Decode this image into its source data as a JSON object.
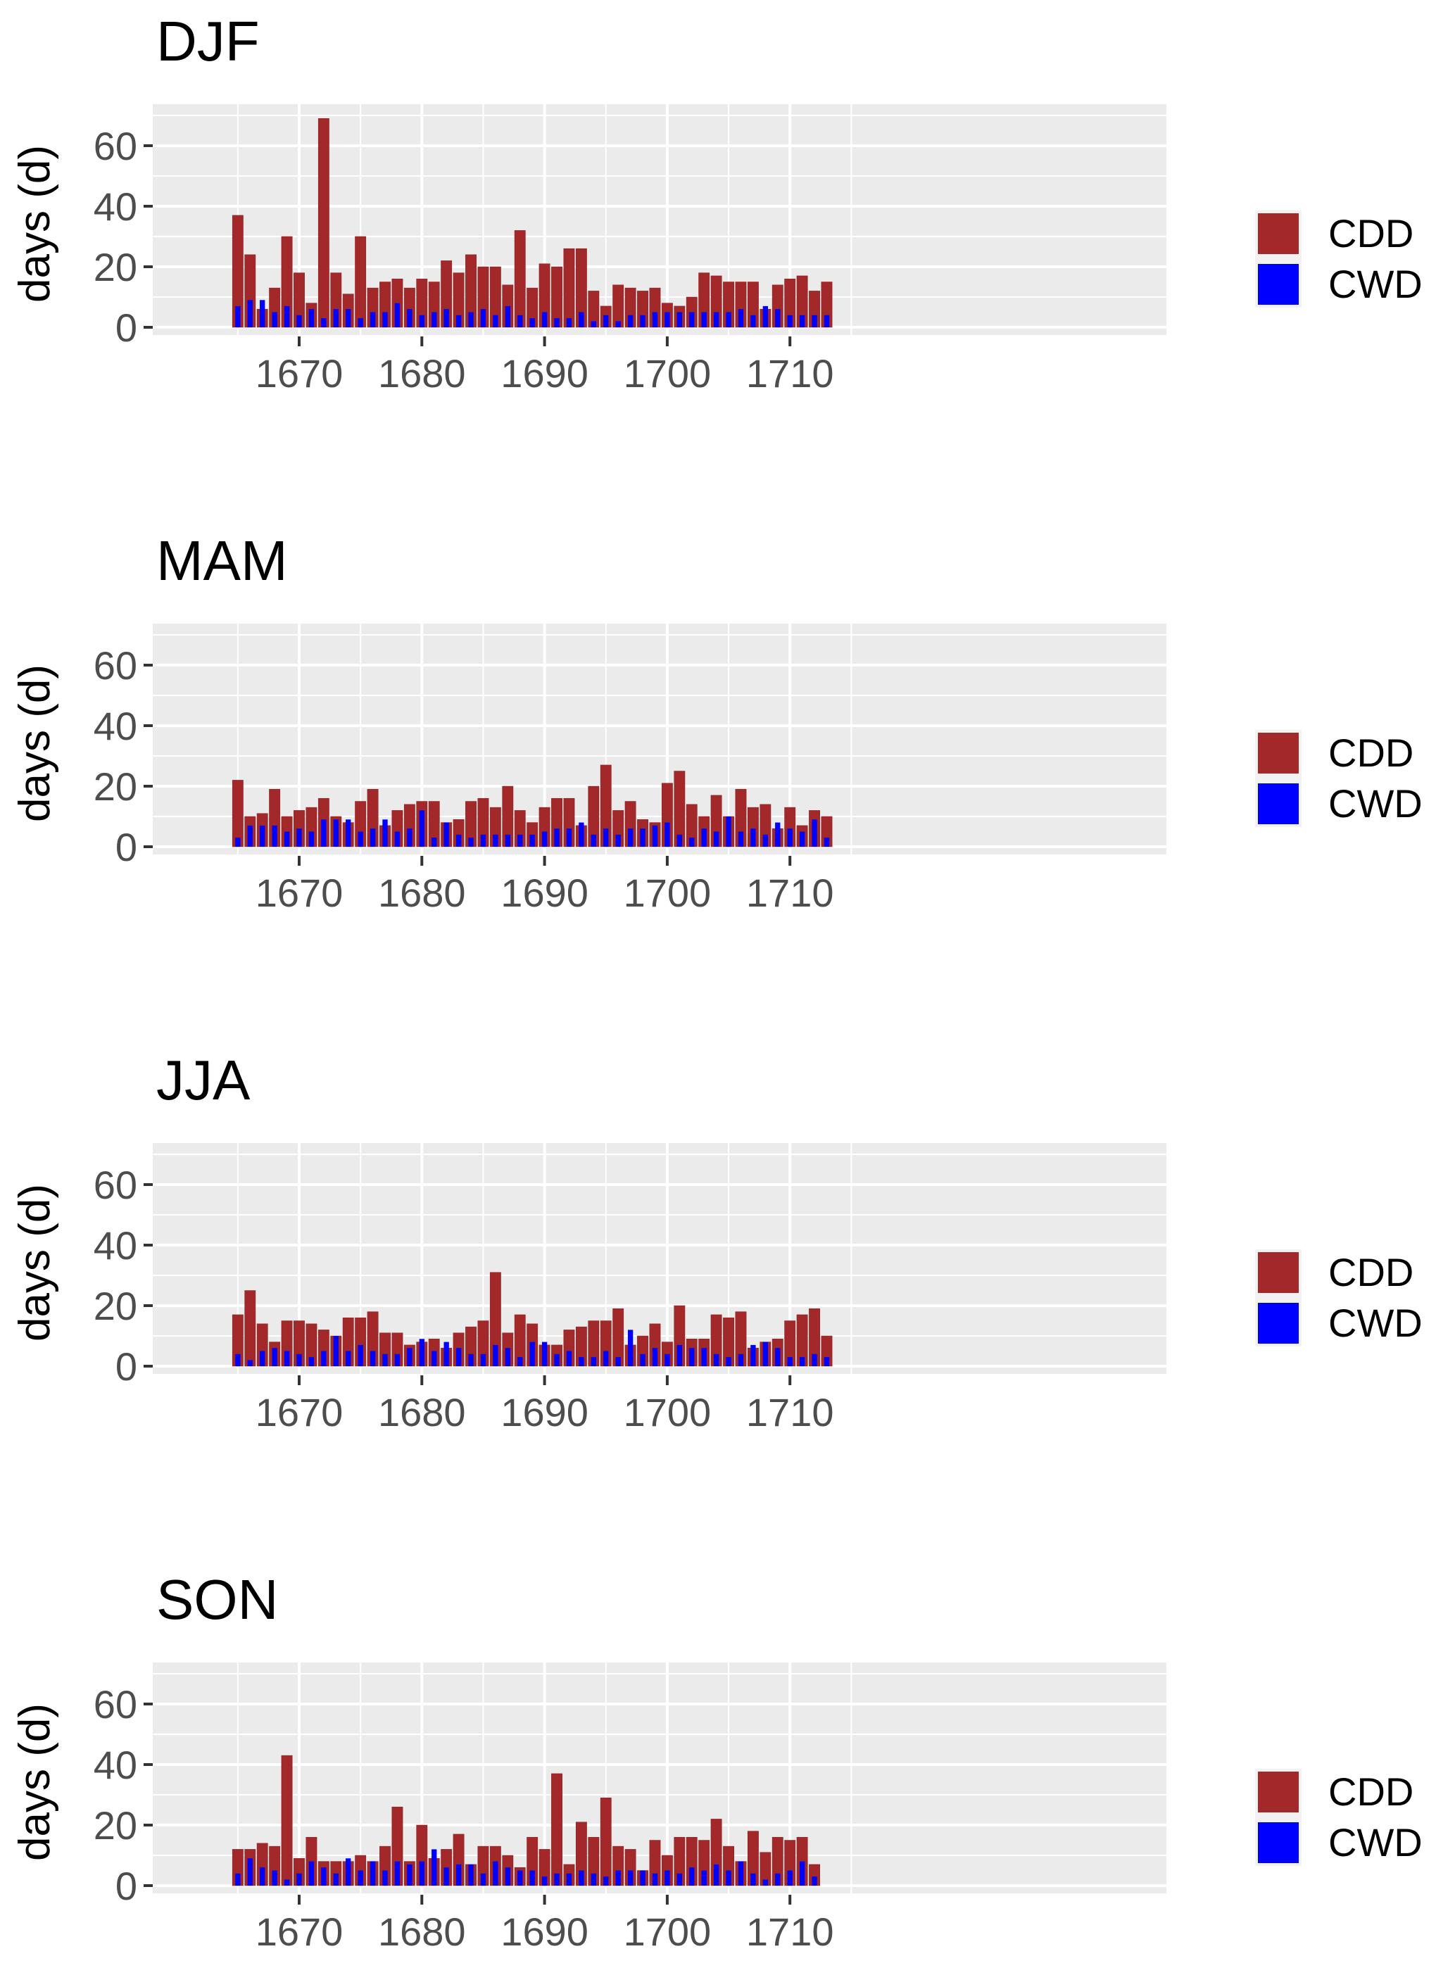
{
  "chart_data": [
    {
      "type": "bar",
      "title": "DJF",
      "xlabel": "",
      "ylabel": "days (d)",
      "ylim": [
        0,
        70
      ],
      "xlim": [
        1662,
        1716
      ],
      "yticks": [
        0,
        20,
        40,
        60
      ],
      "xticks": [
        1670,
        1680,
        1690,
        1700,
        1710
      ],
      "grid": true,
      "legend": "right",
      "x": [
        1665,
        1666,
        1667,
        1668,
        1669,
        1670,
        1671,
        1672,
        1673,
        1674,
        1675,
        1676,
        1677,
        1678,
        1679,
        1680,
        1681,
        1682,
        1683,
        1684,
        1685,
        1686,
        1687,
        1688,
        1689,
        1690,
        1691,
        1692,
        1693,
        1694,
        1695,
        1696,
        1697,
        1698,
        1699,
        1700,
        1701,
        1702,
        1703,
        1704,
        1705,
        1706,
        1707,
        1708,
        1709,
        1710,
        1711,
        1712,
        1713
      ],
      "series": [
        {
          "name": "CDD",
          "color": "#a2282a",
          "values": [
            37,
            24,
            6,
            13,
            30,
            18,
            8,
            69,
            18,
            11,
            30,
            13,
            15,
            16,
            13,
            16,
            15,
            22,
            18,
            24,
            20,
            20,
            14,
            32,
            13,
            21,
            20,
            26,
            26,
            12,
            7,
            14,
            13,
            12,
            13,
            8,
            7,
            10,
            18,
            17,
            15,
            15,
            15,
            6,
            14,
            16,
            17,
            12,
            15
          ]
        },
        {
          "name": "CWD",
          "color": "#0000ff",
          "values": [
            7,
            9,
            9,
            5,
            7,
            4,
            6,
            3,
            6,
            6,
            3,
            5,
            5,
            8,
            6,
            4,
            5,
            6,
            4,
            5,
            6,
            4,
            7,
            4,
            3,
            5,
            3,
            3,
            5,
            2,
            4,
            2,
            4,
            4,
            5,
            5,
            5,
            5,
            5,
            5,
            5,
            6,
            4,
            7,
            6,
            4,
            4,
            4,
            4
          ]
        }
      ]
    },
    {
      "type": "bar",
      "title": "MAM",
      "xlabel": "",
      "ylabel": "days (d)",
      "ylim": [
        0,
        70
      ],
      "xlim": [
        1662,
        1716
      ],
      "yticks": [
        0,
        20,
        40,
        60
      ],
      "xticks": [
        1670,
        1680,
        1690,
        1700,
        1710
      ],
      "grid": true,
      "legend": "right",
      "x": [
        1665,
        1666,
        1667,
        1668,
        1669,
        1670,
        1671,
        1672,
        1673,
        1674,
        1675,
        1676,
        1677,
        1678,
        1679,
        1680,
        1681,
        1682,
        1683,
        1684,
        1685,
        1686,
        1687,
        1688,
        1689,
        1690,
        1691,
        1692,
        1693,
        1694,
        1695,
        1696,
        1697,
        1698,
        1699,
        1700,
        1701,
        1702,
        1703,
        1704,
        1705,
        1706,
        1707,
        1708,
        1709,
        1710,
        1711,
        1712,
        1713
      ],
      "series": [
        {
          "name": "CDD",
          "color": "#a2282a",
          "values": [
            22,
            10,
            11,
            19,
            10,
            12,
            13,
            16,
            10,
            8,
            15,
            19,
            7,
            12,
            14,
            15,
            15,
            8,
            9,
            15,
            16,
            13,
            20,
            12,
            8,
            13,
            16,
            16,
            7,
            20,
            27,
            12,
            15,
            9,
            8,
            21,
            25,
            14,
            10,
            17,
            10,
            19,
            13,
            14,
            6,
            13,
            7,
            12,
            10
          ]
        },
        {
          "name": "CWD",
          "color": "#0000ff",
          "values": [
            3,
            7,
            7,
            7,
            5,
            6,
            5,
            9,
            9,
            9,
            5,
            6,
            9,
            5,
            6,
            12,
            3,
            8,
            4,
            3,
            4,
            4,
            4,
            4,
            4,
            5,
            6,
            6,
            8,
            4,
            6,
            4,
            6,
            6,
            7,
            8,
            4,
            3,
            6,
            5,
            10,
            5,
            6,
            4,
            8,
            6,
            5,
            9,
            3
          ]
        }
      ]
    },
    {
      "type": "bar",
      "title": "JJA",
      "xlabel": "",
      "ylabel": "days (d)",
      "ylim": [
        0,
        70
      ],
      "xlim": [
        1662,
        1716
      ],
      "yticks": [
        0,
        20,
        40,
        60
      ],
      "xticks": [
        1670,
        1680,
        1690,
        1700,
        1710
      ],
      "grid": true,
      "legend": "right",
      "x": [
        1665,
        1666,
        1667,
        1668,
        1669,
        1670,
        1671,
        1672,
        1673,
        1674,
        1675,
        1676,
        1677,
        1678,
        1679,
        1680,
        1681,
        1682,
        1683,
        1684,
        1685,
        1686,
        1687,
        1688,
        1689,
        1690,
        1691,
        1692,
        1693,
        1694,
        1695,
        1696,
        1697,
        1698,
        1699,
        1700,
        1701,
        1702,
        1703,
        1704,
        1705,
        1706,
        1707,
        1708,
        1709,
        1710,
        1711,
        1712,
        1713
      ],
      "series": [
        {
          "name": "CDD",
          "color": "#a2282a",
          "values": [
            17,
            25,
            14,
            8,
            15,
            15,
            14,
            12,
            10,
            16,
            16,
            18,
            11,
            11,
            7,
            8,
            9,
            6,
            11,
            13,
            15,
            31,
            11,
            17,
            14,
            7,
            7,
            12,
            13,
            15,
            15,
            19,
            7,
            10,
            14,
            8,
            20,
            9,
            9,
            17,
            16,
            18,
            6,
            8,
            9,
            15,
            17,
            19,
            10
          ]
        },
        {
          "name": "CWD",
          "color": "#0000ff",
          "values": [
            4,
            2,
            5,
            6,
            5,
            4,
            3,
            5,
            10,
            5,
            7,
            5,
            4,
            4,
            6,
            9,
            5,
            8,
            6,
            4,
            4,
            7,
            6,
            3,
            8,
            8,
            4,
            5,
            3,
            3,
            5,
            3,
            12,
            4,
            6,
            4,
            7,
            6,
            6,
            4,
            3,
            4,
            7,
            8,
            6,
            3,
            3,
            4,
            3
          ]
        }
      ]
    },
    {
      "type": "bar",
      "title": "SON",
      "xlabel": "",
      "ylabel": "days (d)",
      "ylim": [
        0,
        70
      ],
      "xlim": [
        1662,
        1716
      ],
      "yticks": [
        0,
        20,
        40,
        60
      ],
      "xticks": [
        1670,
        1680,
        1690,
        1700,
        1710
      ],
      "grid": true,
      "legend": "right",
      "x": [
        1665,
        1666,
        1667,
        1668,
        1669,
        1670,
        1671,
        1672,
        1673,
        1674,
        1675,
        1676,
        1677,
        1678,
        1679,
        1680,
        1681,
        1682,
        1683,
        1684,
        1685,
        1686,
        1687,
        1688,
        1689,
        1690,
        1691,
        1692,
        1693,
        1694,
        1695,
        1696,
        1697,
        1698,
        1699,
        1700,
        1701,
        1702,
        1703,
        1704,
        1705,
        1706,
        1707,
        1708,
        1709,
        1710,
        1711,
        1712,
        1713
      ],
      "series": [
        {
          "name": "CDD",
          "color": "#a2282a",
          "values": [
            12,
            12,
            14,
            13,
            43,
            9,
            16,
            8,
            8,
            8,
            10,
            8,
            13,
            26,
            8,
            20,
            9,
            12,
            17,
            7,
            13,
            13,
            10,
            6,
            16,
            12,
            37,
            7,
            21,
            16,
            29,
            13,
            12,
            5,
            15,
            10,
            16,
            16,
            15,
            22,
            13,
            8,
            18,
            11,
            16,
            15,
            16,
            7,
            0
          ]
        },
        {
          "name": "CWD",
          "color": "#0000ff",
          "values": [
            4,
            9,
            6,
            5,
            2,
            4,
            8,
            6,
            4,
            9,
            5,
            8,
            5,
            8,
            7,
            8,
            12,
            6,
            7,
            7,
            4,
            8,
            6,
            5,
            5,
            3,
            4,
            4,
            5,
            4,
            3,
            5,
            5,
            5,
            4,
            5,
            4,
            6,
            5,
            7,
            5,
            8,
            4,
            2,
            4,
            5,
            8,
            3,
            0
          ]
        }
      ]
    }
  ],
  "legend": {
    "items": [
      {
        "label": "CDD",
        "color": "#a2282a"
      },
      {
        "label": "CWD",
        "color": "#0000ff"
      }
    ]
  },
  "style": {
    "panel_bg": "#ebebeb",
    "grid_color": "#ffffff",
    "tick_color": "#333333",
    "tick_label_color": "#4d4d4d"
  }
}
